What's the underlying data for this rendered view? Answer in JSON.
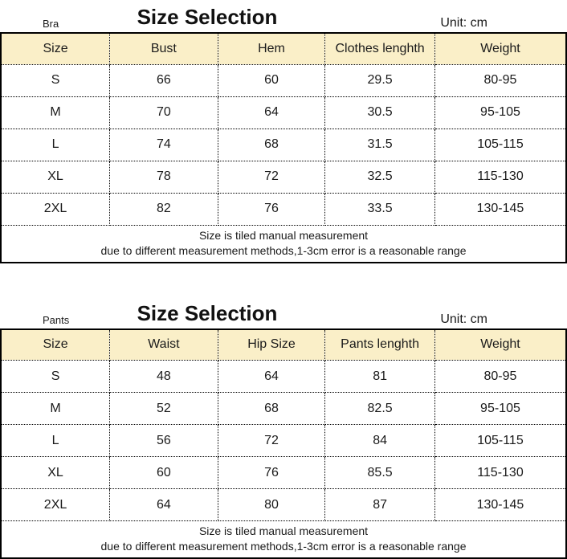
{
  "colors": {
    "header_bg": "#FAEFC8",
    "border": "#000000",
    "text": "#1a1a1a"
  },
  "tables": [
    {
      "label": "Bra",
      "title": "Size Selection",
      "unit": "Unit: cm",
      "columns": [
        "Size",
        "Bust",
        "Hem",
        "Clothes lenghth",
        "Weight"
      ],
      "rows": [
        [
          "S",
          "66",
          "60",
          "29.5",
          "80-95"
        ],
        [
          "M",
          "70",
          "64",
          "30.5",
          "95-105"
        ],
        [
          "L",
          "74",
          "68",
          "31.5",
          "105-115"
        ],
        [
          "XL",
          "78",
          "72",
          "32.5",
          "115-130"
        ],
        [
          "2XL",
          "82",
          "76",
          "33.5",
          "130-145"
        ]
      ],
      "footer": [
        "Size is tiled manual measurement",
        "due to different measurement methods,1-3cm error is a reasonable range"
      ]
    },
    {
      "label": "Pants",
      "title": "Size Selection",
      "unit": "Unit: cm",
      "columns": [
        "Size",
        "Waist",
        "Hip Size",
        "Pants lenghth",
        "Weight"
      ],
      "rows": [
        [
          "S",
          "48",
          "64",
          "81",
          "80-95"
        ],
        [
          "M",
          "52",
          "68",
          "82.5",
          "95-105"
        ],
        [
          "L",
          "56",
          "72",
          "84",
          "105-115"
        ],
        [
          "XL",
          "60",
          "76",
          "85.5",
          "115-130"
        ],
        [
          "2XL",
          "64",
          "80",
          "87",
          "130-145"
        ]
      ],
      "footer": [
        "Size is tiled manual measurement",
        "due to different measurement methods,1-3cm error is a reasonable range"
      ]
    }
  ]
}
